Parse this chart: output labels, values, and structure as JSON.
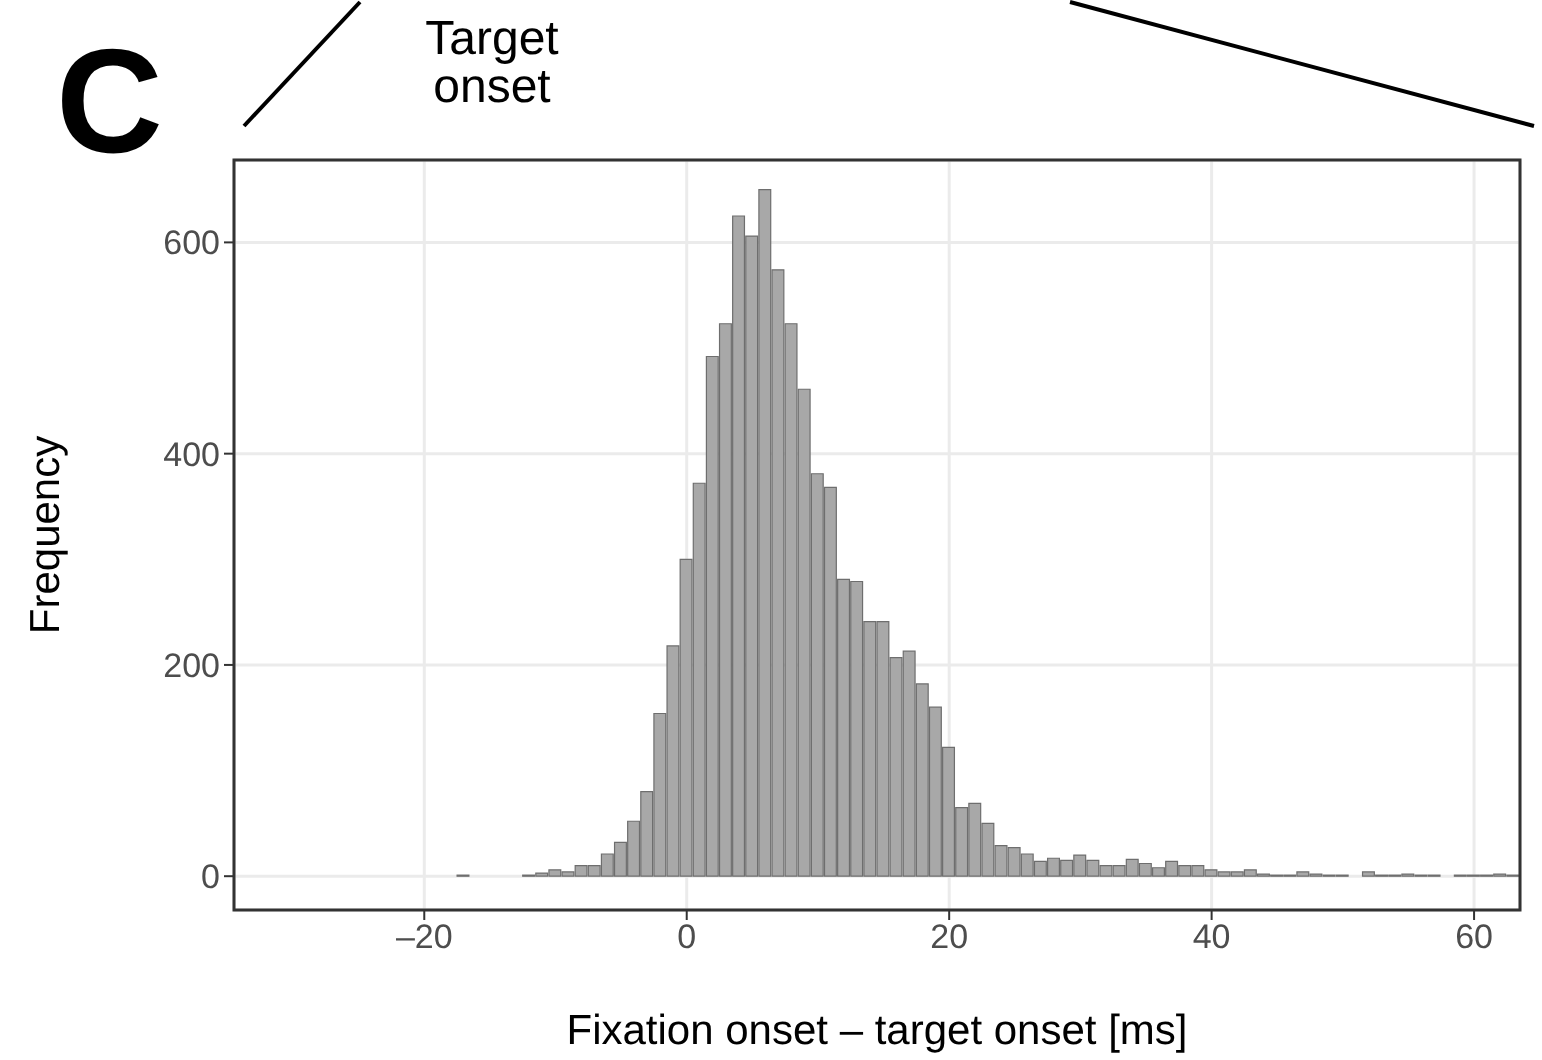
{
  "chart_data": {
    "type": "histogram",
    "xlabel": "Fixation onset – target onset [ms]",
    "ylabel": "Frequency",
    "annotations": [
      "C",
      "Target onset"
    ],
    "bins": [
      -17.5,
      -16.5,
      -15.5,
      -14.5,
      -13.5,
      -12.5,
      -11.5,
      -10.5,
      -9.5,
      -8.5,
      -7.5,
      -6.5,
      -5.5,
      -4.5,
      -3.5,
      -2.5,
      -1.5,
      -0.5,
      0.5,
      1.5,
      2.5,
      3.5,
      4.5,
      5.5,
      6.5,
      7.5,
      8.5,
      9.5,
      10.5,
      11.5,
      12.5,
      13.5,
      14.5,
      15.5,
      16.5,
      17.5,
      18.5,
      19.5,
      20.5,
      21.5,
      22.5,
      23.5,
      24.5,
      25.5,
      26.5,
      27.5,
      28.5,
      29.5,
      30.5,
      31.5,
      32.5,
      33.5,
      34.5,
      35.5,
      36.5,
      37.5,
      38.5,
      39.5,
      40.5,
      41.5,
      42.5,
      43.5,
      44.5,
      45.5,
      46.5,
      47.5,
      48.5,
      49.5,
      50.5,
      51.5,
      52.5,
      53.5,
      54.5,
      55.5,
      56.5,
      57.5,
      58.5,
      59.5,
      60.5,
      61.5,
      62.5,
      63.5
    ],
    "values": [
      1,
      0,
      0,
      0,
      0,
      1,
      3,
      6,
      4,
      10,
      10,
      21,
      32,
      52,
      80,
      154,
      218,
      300,
      372,
      492,
      523,
      625,
      606,
      650,
      574,
      523,
      461,
      381,
      368,
      281,
      279,
      241,
      241,
      207,
      213,
      182,
      160,
      122,
      65,
      69,
      50,
      29,
      27,
      21,
      14,
      17,
      15,
      20,
      15,
      10,
      10,
      16,
      12,
      8,
      14,
      10,
      10,
      6,
      4,
      4,
      6,
      2,
      1,
      1,
      4,
      2,
      1,
      1,
      0,
      4,
      1,
      1,
      2,
      1,
      1,
      0,
      1,
      1,
      1,
      2,
      1
    ],
    "color": "#a8a8a8",
    "xlim": [
      -34.5,
      63.5
    ],
    "xticks": [
      {
        "value": -20,
        "label": "–20"
      },
      0,
      20,
      40,
      60
    ],
    "ylim": [
      -32,
      678
    ],
    "yticks": [
      0,
      200,
      400,
      600
    ],
    "grid": true
  }
}
